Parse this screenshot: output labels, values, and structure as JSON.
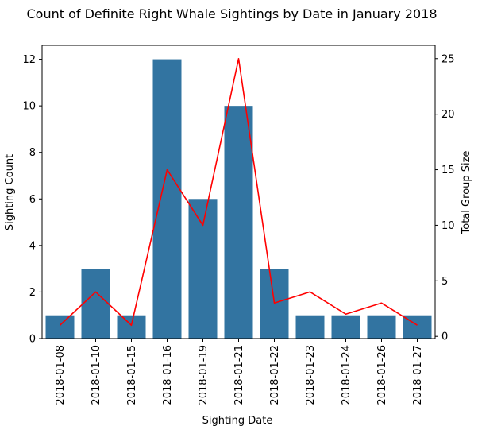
{
  "chart_data": {
    "type": "bar",
    "title": "Count of Definite Right Whale Sightings by Date in January 2018",
    "xlabel": "Sighting Date",
    "ylabel": "Sighting Count",
    "y2label": "Total Group Size",
    "categories": [
      "2018-01-08",
      "2018-01-10",
      "2018-01-15",
      "2018-01-16",
      "2018-01-19",
      "2018-01-21",
      "2018-01-22",
      "2018-01-23",
      "2018-01-24",
      "2018-01-26",
      "2018-01-27"
    ],
    "series": [
      {
        "type": "bar",
        "axis": "left",
        "values": [
          1,
          3,
          1,
          12,
          6,
          10,
          3,
          1,
          1,
          1,
          1
        ]
      },
      {
        "type": "line",
        "axis": "right",
        "values": [
          1,
          4,
          1,
          15,
          10,
          25,
          3,
          4,
          2,
          3,
          1
        ]
      }
    ],
    "ylim": [
      0,
      12.6
    ],
    "y2lim": [
      -0.2,
      26.2
    ],
    "yticks": [
      0,
      2,
      4,
      6,
      8,
      10,
      12
    ],
    "y2ticks": [
      0,
      5,
      10,
      15,
      20,
      25
    ],
    "grid": false,
    "colors": {
      "bar": "#3274a1",
      "line": "#ff0000",
      "y2label": "#ff0000"
    }
  }
}
